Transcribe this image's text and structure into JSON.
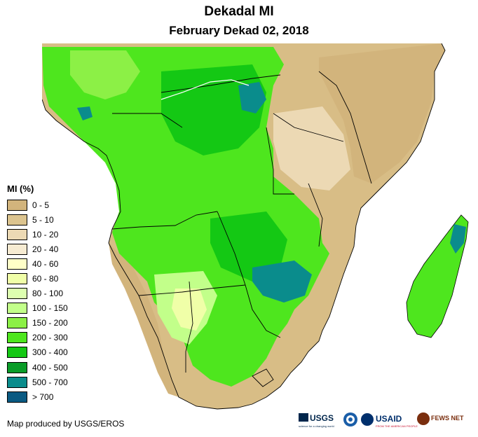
{
  "title": "Dekadal MI",
  "subtitle": "February Dekad 02, 2018",
  "legend": {
    "title": "MI (%)",
    "items": [
      {
        "label": "0 - 5",
        "color": "#d2b47c"
      },
      {
        "label": "5 - 10",
        "color": "#dcc48f"
      },
      {
        "label": "10 - 20",
        "color": "#ecd9b4"
      },
      {
        "label": "20 - 40",
        "color": "#f6ebd2"
      },
      {
        "label": "40 - 60",
        "color": "#ffffc8"
      },
      {
        "label": "60 - 80",
        "color": "#f0ffa8"
      },
      {
        "label": "80 - 100",
        "color": "#ddffb0"
      },
      {
        "label": "100 - 150",
        "color": "#c2ff8a"
      },
      {
        "label": "150 - 200",
        "color": "#8cf046"
      },
      {
        "label": "200 - 300",
        "color": "#4ee61e"
      },
      {
        "label": "300 - 400",
        "color": "#14c814"
      },
      {
        "label": "400 - 500",
        "color": "#0a9c28"
      },
      {
        "label": "500 - 700",
        "color": "#0a8c8c"
      },
      {
        "label": "> 700",
        "color": "#0a5a82"
      }
    ]
  },
  "credit": "Map produced by USGS/EROS",
  "logos": {
    "usgs": "USGS",
    "usgs_tagline": "science for a changing world",
    "usaid": "USAID",
    "usaid_tagline": "FROM THE AMERICAN PEOPLE",
    "fewsnet": "FEWS NET"
  },
  "colors": {
    "ocean": "#ffffff",
    "border": "#000000",
    "river": "#ffffff"
  }
}
